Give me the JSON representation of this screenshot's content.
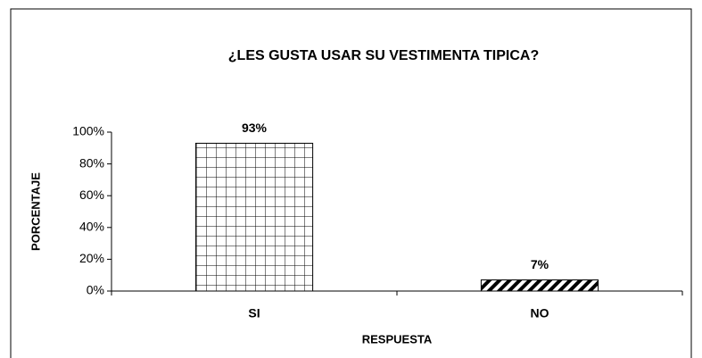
{
  "chart_data": {
    "type": "bar",
    "title": "¿LES GUSTA USAR SU VESTIMENTA TIPICA?",
    "x_label": "RESPUESTA",
    "y_label": "PORCENTAJE",
    "categories": [
      "SI",
      "NO"
    ],
    "values": [
      93,
      7
    ],
    "value_labels": [
      "93%",
      "7%"
    ],
    "color": "#000000",
    "ylim": [
      0,
      100
    ],
    "yticks": [
      {
        "value": 0,
        "label": "0%"
      },
      {
        "value": 20,
        "label": "20%"
      },
      {
        "value": 40,
        "label": "40%"
      },
      {
        "value": 60,
        "label": "60%"
      },
      {
        "value": 80,
        "label": "80%"
      },
      {
        "value": 100,
        "label": "100%"
      }
    ],
    "grid": false
  }
}
